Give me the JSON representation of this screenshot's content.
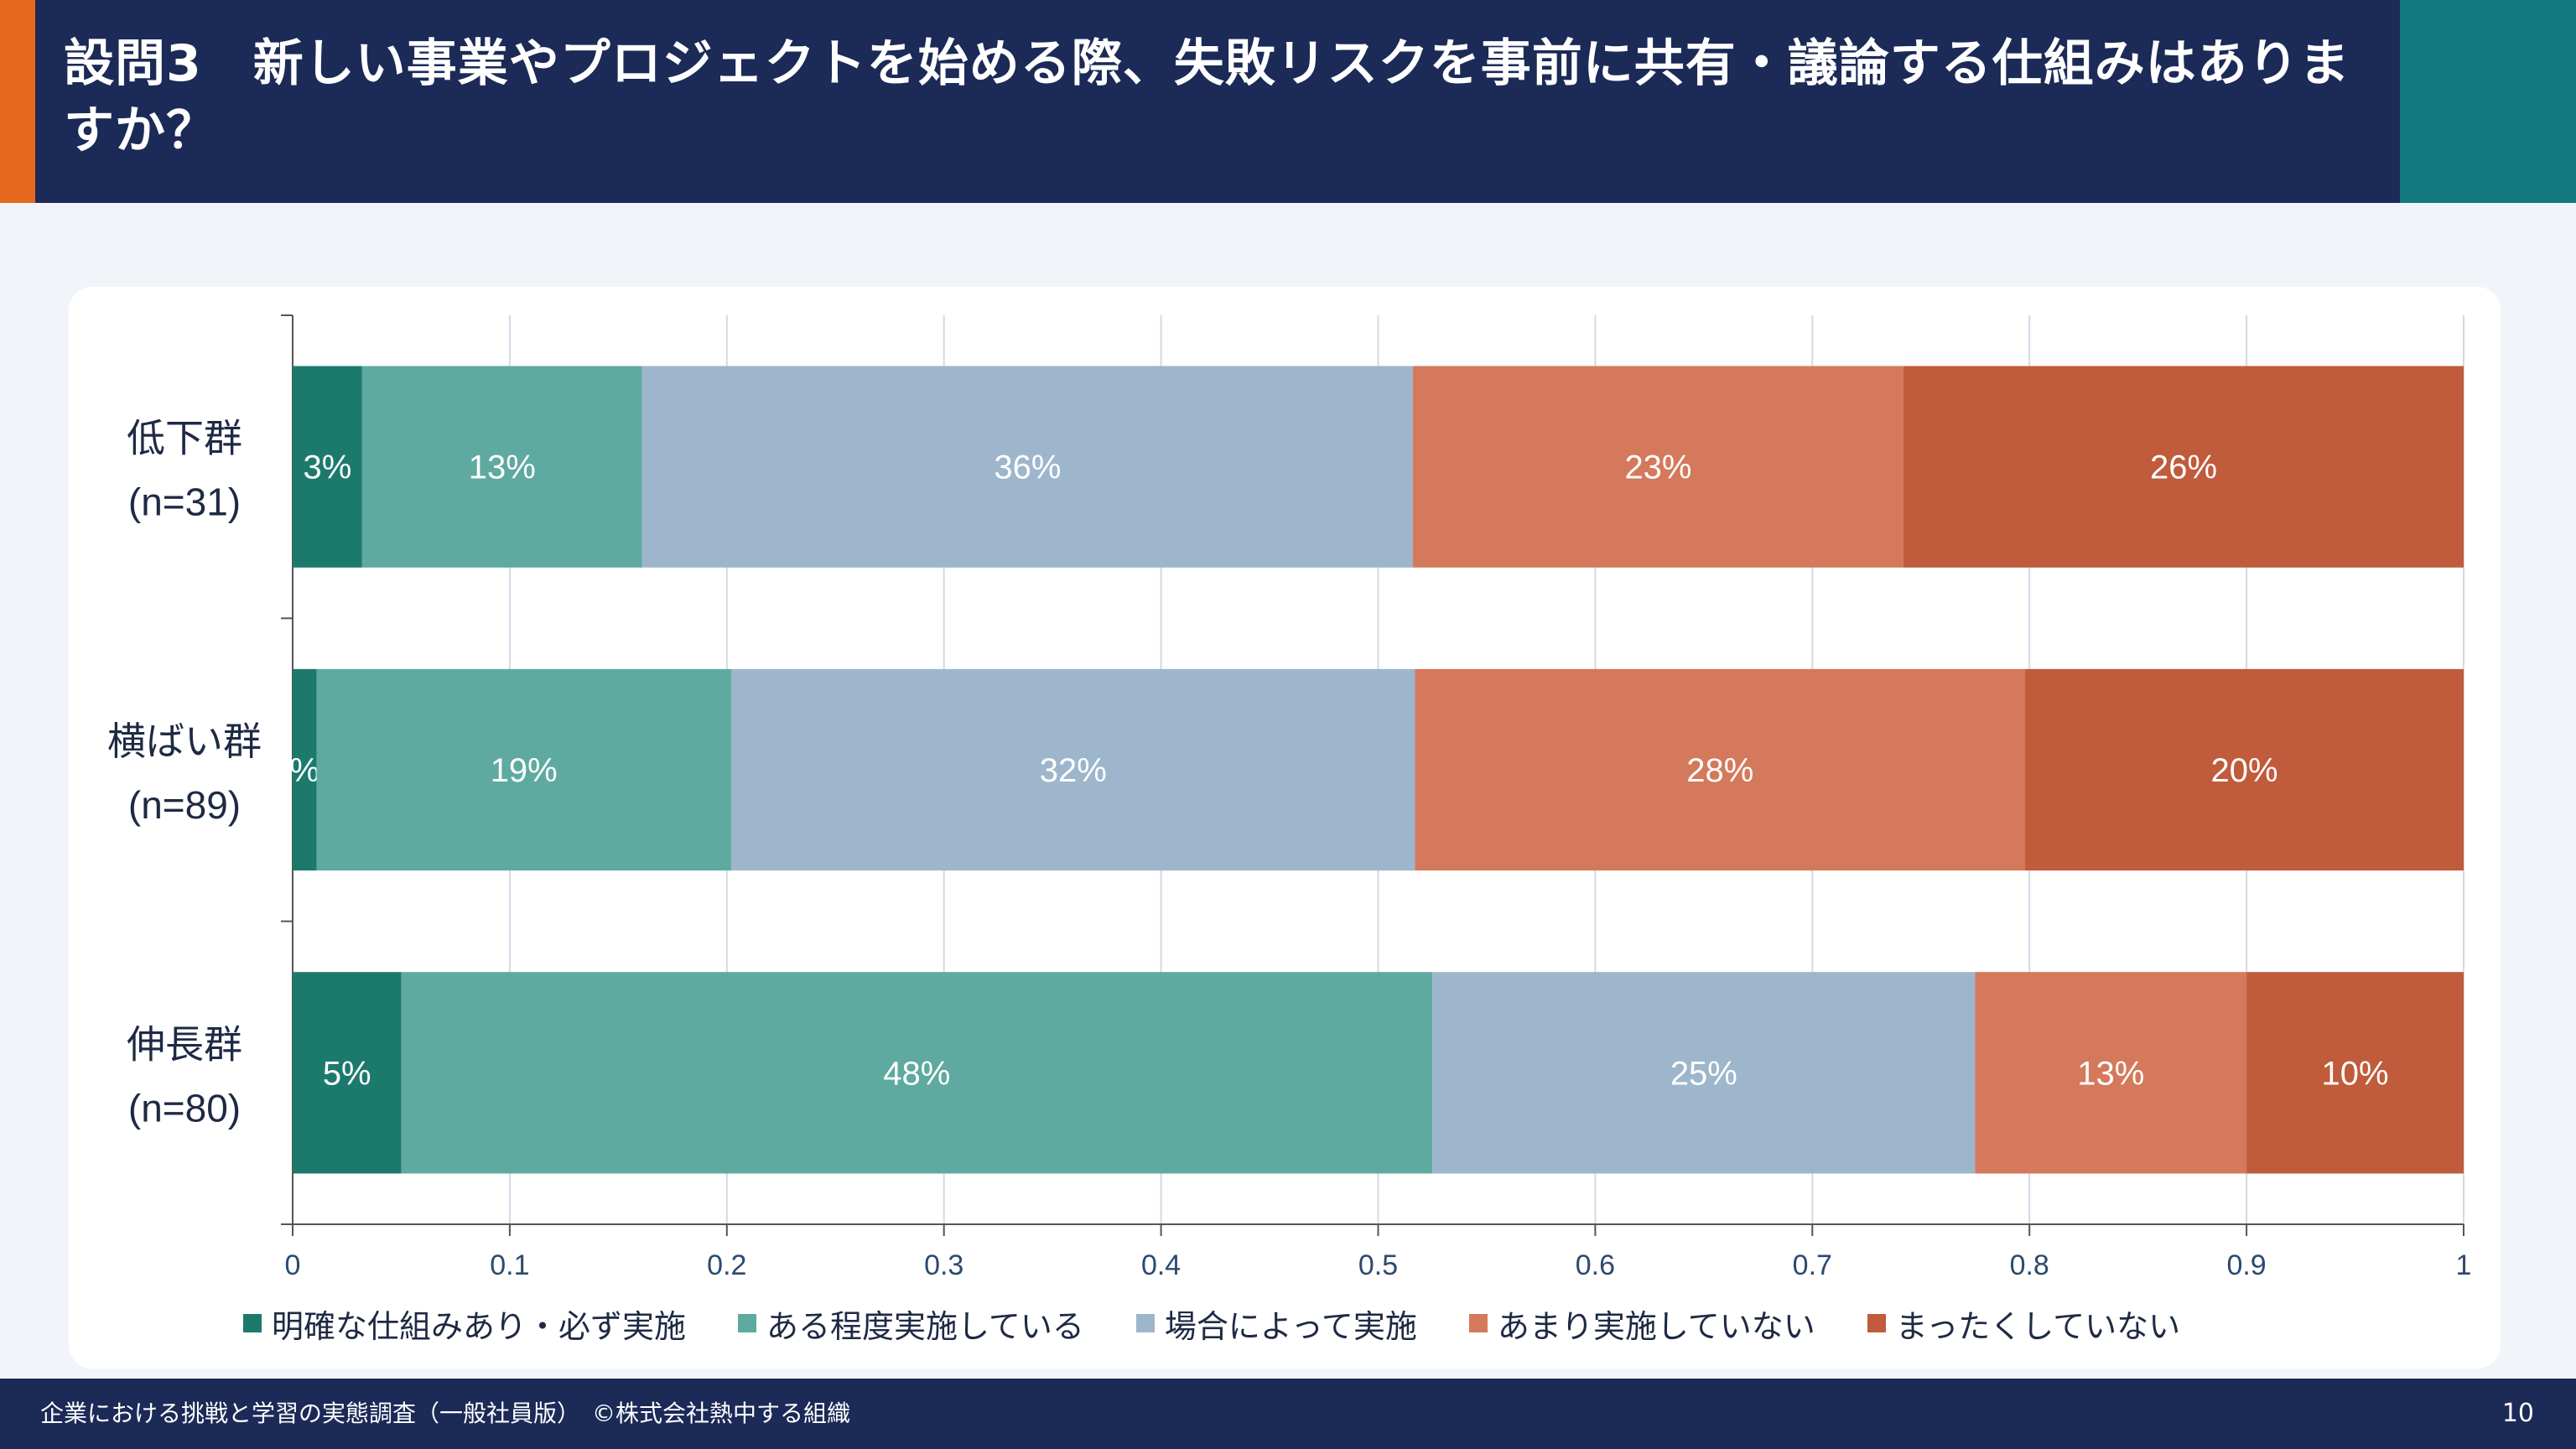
{
  "header": {
    "title": "設問3　新しい事業やプロジェクトを始める際、失敗リスクを事前に共有・議論する仕組みはありますか？"
  },
  "chart_data": {
    "type": "bar",
    "orientation": "horizontal",
    "stacked": true,
    "categories": [
      {
        "name": "低下群",
        "n": "(n=31)"
      },
      {
        "name": "横ばい群",
        "n": "(n=89)"
      },
      {
        "name": "伸長群",
        "n": "(n=80)"
      }
    ],
    "series": [
      {
        "name": "明確な仕組みあり・必ず実施",
        "color": "#1c7a6c",
        "values": [
          0.032,
          0.011,
          0.05
        ],
        "labels": [
          "3%",
          "%",
          "5%"
        ]
      },
      {
        "name": "ある程度実施している",
        "color": "#5eaaa0",
        "values": [
          0.129,
          0.191,
          0.475
        ],
        "labels": [
          "13%",
          "19%",
          "48%"
        ]
      },
      {
        "name": "場合によって実施",
        "color": "#9db6cc",
        "values": [
          0.355,
          0.315,
          0.25
        ],
        "labels": [
          "36%",
          "32%",
          "25%"
        ]
      },
      {
        "name": "あまり実施していない",
        "color": "#d4795b",
        "values": [
          0.226,
          0.281,
          0.125
        ],
        "labels": [
          "23%",
          "28%",
          "13%"
        ]
      },
      {
        "name": "まったくしていない",
        "color": "#c05b3b",
        "values": [
          0.258,
          0.202,
          0.1
        ],
        "labels": [
          "26%",
          "20%",
          "10%"
        ]
      }
    ],
    "xlim": [
      0,
      1
    ],
    "xticks": [
      "0",
      "0.1",
      "0.2",
      "0.3",
      "0.4",
      "0.5",
      "0.6",
      "0.7",
      "0.8",
      "0.9",
      "1"
    ],
    "grid": "vertical",
    "legend_position": "bottom"
  },
  "footer": {
    "text": "企業における挑戦と学習の実態調査（一般社員版）　©株式会社熱中する組織",
    "page": "10"
  }
}
